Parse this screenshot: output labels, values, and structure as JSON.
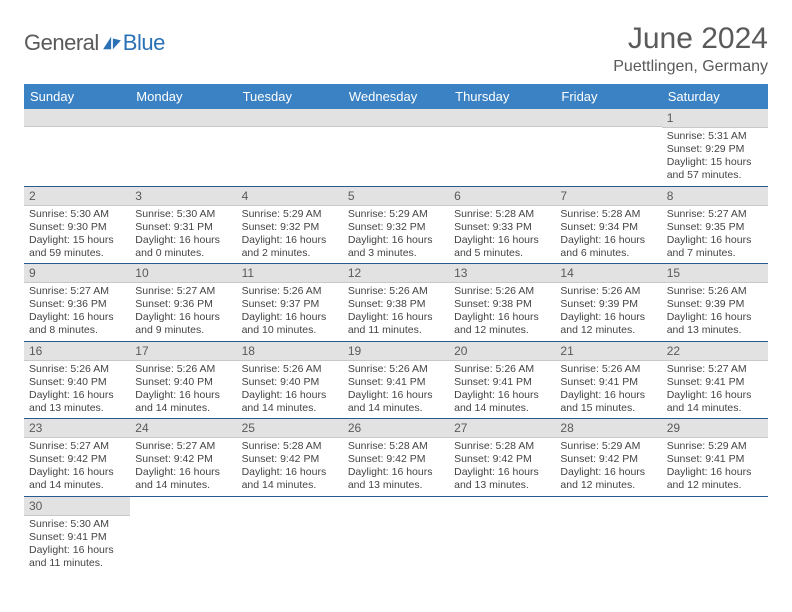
{
  "brand": {
    "part1": "General",
    "part2": "Blue"
  },
  "title": "June 2024",
  "location": "Puettlingen, Germany",
  "colors": {
    "header_bg": "#3b82c4",
    "header_text": "#ffffff",
    "daybar_bg": "#e2e2e2",
    "text_muted": "#5a5a5a",
    "row_border": "#2a5a8a",
    "brand_blue": "#2a72b5"
  },
  "weekdays": [
    "Sunday",
    "Monday",
    "Tuesday",
    "Wednesday",
    "Thursday",
    "Friday",
    "Saturday"
  ],
  "weeks": [
    [
      null,
      null,
      null,
      null,
      null,
      null,
      {
        "n": "1",
        "sr": "5:31 AM",
        "ss": "9:29 PM",
        "dl": "15 hours and 57 minutes."
      }
    ],
    [
      {
        "n": "2",
        "sr": "5:30 AM",
        "ss": "9:30 PM",
        "dl": "15 hours and 59 minutes."
      },
      {
        "n": "3",
        "sr": "5:30 AM",
        "ss": "9:31 PM",
        "dl": "16 hours and 0 minutes."
      },
      {
        "n": "4",
        "sr": "5:29 AM",
        "ss": "9:32 PM",
        "dl": "16 hours and 2 minutes."
      },
      {
        "n": "5",
        "sr": "5:29 AM",
        "ss": "9:32 PM",
        "dl": "16 hours and 3 minutes."
      },
      {
        "n": "6",
        "sr": "5:28 AM",
        "ss": "9:33 PM",
        "dl": "16 hours and 5 minutes."
      },
      {
        "n": "7",
        "sr": "5:28 AM",
        "ss": "9:34 PM",
        "dl": "16 hours and 6 minutes."
      },
      {
        "n": "8",
        "sr": "5:27 AM",
        "ss": "9:35 PM",
        "dl": "16 hours and 7 minutes."
      }
    ],
    [
      {
        "n": "9",
        "sr": "5:27 AM",
        "ss": "9:36 PM",
        "dl": "16 hours and 8 minutes."
      },
      {
        "n": "10",
        "sr": "5:27 AM",
        "ss": "9:36 PM",
        "dl": "16 hours and 9 minutes."
      },
      {
        "n": "11",
        "sr": "5:26 AM",
        "ss": "9:37 PM",
        "dl": "16 hours and 10 minutes."
      },
      {
        "n": "12",
        "sr": "5:26 AM",
        "ss": "9:38 PM",
        "dl": "16 hours and 11 minutes."
      },
      {
        "n": "13",
        "sr": "5:26 AM",
        "ss": "9:38 PM",
        "dl": "16 hours and 12 minutes."
      },
      {
        "n": "14",
        "sr": "5:26 AM",
        "ss": "9:39 PM",
        "dl": "16 hours and 12 minutes."
      },
      {
        "n": "15",
        "sr": "5:26 AM",
        "ss": "9:39 PM",
        "dl": "16 hours and 13 minutes."
      }
    ],
    [
      {
        "n": "16",
        "sr": "5:26 AM",
        "ss": "9:40 PM",
        "dl": "16 hours and 13 minutes."
      },
      {
        "n": "17",
        "sr": "5:26 AM",
        "ss": "9:40 PM",
        "dl": "16 hours and 14 minutes."
      },
      {
        "n": "18",
        "sr": "5:26 AM",
        "ss": "9:40 PM",
        "dl": "16 hours and 14 minutes."
      },
      {
        "n": "19",
        "sr": "5:26 AM",
        "ss": "9:41 PM",
        "dl": "16 hours and 14 minutes."
      },
      {
        "n": "20",
        "sr": "5:26 AM",
        "ss": "9:41 PM",
        "dl": "16 hours and 14 minutes."
      },
      {
        "n": "21",
        "sr": "5:26 AM",
        "ss": "9:41 PM",
        "dl": "16 hours and 15 minutes."
      },
      {
        "n": "22",
        "sr": "5:27 AM",
        "ss": "9:41 PM",
        "dl": "16 hours and 14 minutes."
      }
    ],
    [
      {
        "n": "23",
        "sr": "5:27 AM",
        "ss": "9:42 PM",
        "dl": "16 hours and 14 minutes."
      },
      {
        "n": "24",
        "sr": "5:27 AM",
        "ss": "9:42 PM",
        "dl": "16 hours and 14 minutes."
      },
      {
        "n": "25",
        "sr": "5:28 AM",
        "ss": "9:42 PM",
        "dl": "16 hours and 14 minutes."
      },
      {
        "n": "26",
        "sr": "5:28 AM",
        "ss": "9:42 PM",
        "dl": "16 hours and 13 minutes."
      },
      {
        "n": "27",
        "sr": "5:28 AM",
        "ss": "9:42 PM",
        "dl": "16 hours and 13 minutes."
      },
      {
        "n": "28",
        "sr": "5:29 AM",
        "ss": "9:42 PM",
        "dl": "16 hours and 12 minutes."
      },
      {
        "n": "29",
        "sr": "5:29 AM",
        "ss": "9:41 PM",
        "dl": "16 hours and 12 minutes."
      }
    ],
    [
      {
        "n": "30",
        "sr": "5:30 AM",
        "ss": "9:41 PM",
        "dl": "16 hours and 11 minutes."
      },
      null,
      null,
      null,
      null,
      null,
      null
    ]
  ],
  "labels": {
    "sunrise": "Sunrise:",
    "sunset": "Sunset:",
    "daylight": "Daylight:"
  }
}
